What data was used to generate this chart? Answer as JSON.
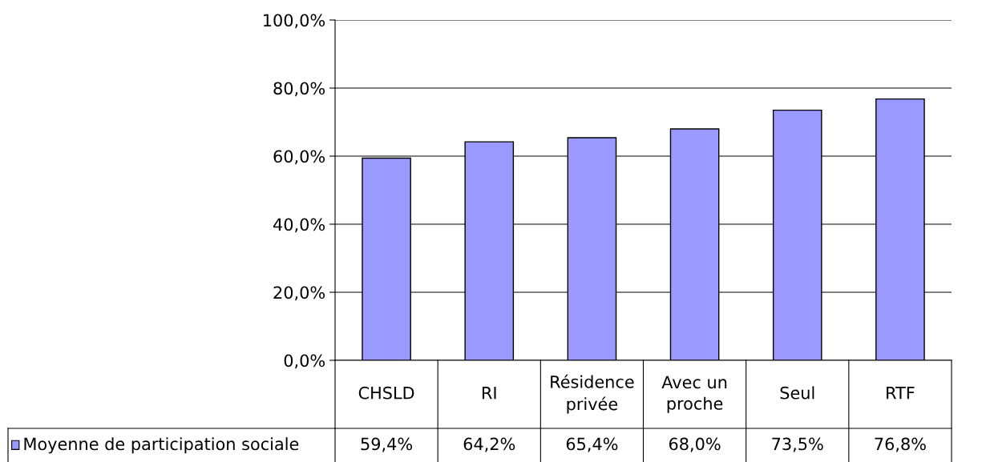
{
  "chart_data": {
    "type": "bar",
    "categories": [
      "CHSLD",
      "RI",
      "Résidence privée",
      "Avec un proche",
      "Seul",
      "RTF"
    ],
    "series": [
      {
        "name": "Moyenne de participation sociale",
        "color": "#9999ff",
        "values": [
          59.4,
          64.2,
          65.4,
          68.0,
          73.5,
          76.8
        ]
      }
    ],
    "value_labels": [
      "59,4%",
      "64,2%",
      "65,4%",
      "68,0%",
      "73,5%",
      "76,8%"
    ],
    "ylim": [
      0,
      100
    ],
    "yticks": [
      {
        "value": 0,
        "label": "0,0%"
      },
      {
        "value": 20,
        "label": "20,0%"
      },
      {
        "value": 40,
        "label": "40,0%"
      },
      {
        "value": 60,
        "label": "60,0%"
      },
      {
        "value": 80,
        "label": "80,0%"
      },
      {
        "value": 100,
        "label": "100,0%"
      }
    ],
    "grid": "y",
    "legend": "bottom"
  }
}
